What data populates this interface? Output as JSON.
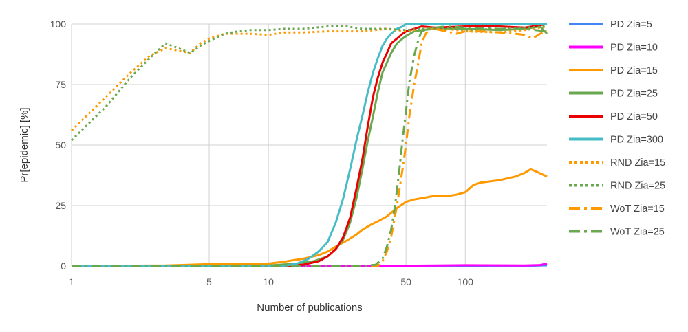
{
  "chart_data": {
    "type": "line",
    "xlabel": "Number of publications",
    "ylabel": "Pr[epidemic] [%]",
    "x_scale": "log",
    "xlim": [
      1,
      260
    ],
    "ylim": [
      0,
      100
    ],
    "x_ticks": [
      1,
      5,
      10,
      50,
      100
    ],
    "y_ticks": [
      0,
      25,
      50,
      75,
      100
    ],
    "grid": true,
    "legend_position": "right",
    "series": [
      {
        "name": "PD Zia=5",
        "color": "#4285f4",
        "dash": "solid",
        "points": [
          [
            1,
            0
          ],
          [
            10,
            0
          ],
          [
            50,
            0
          ],
          [
            100,
            0
          ],
          [
            200,
            0
          ],
          [
            260,
            0.3
          ]
        ]
      },
      {
        "name": "PD Zia=10",
        "color": "#ff00ff",
        "dash": "solid",
        "points": [
          [
            1,
            0
          ],
          [
            20,
            0
          ],
          [
            50,
            0.1
          ],
          [
            100,
            0.3
          ],
          [
            200,
            0.2
          ],
          [
            240,
            0.4
          ],
          [
            260,
            1
          ]
        ]
      },
      {
        "name": "PD Zia=15",
        "color": "#ff9900",
        "dash": "solid",
        "points": [
          [
            1,
            0
          ],
          [
            3,
            0.2
          ],
          [
            5,
            0.8
          ],
          [
            10,
            1
          ],
          [
            12,
            1.8
          ],
          [
            15,
            3
          ],
          [
            18,
            4.5
          ],
          [
            20,
            6
          ],
          [
            22,
            8
          ],
          [
            25,
            10.5
          ],
          [
            28,
            13
          ],
          [
            30,
            15
          ],
          [
            33,
            17
          ],
          [
            36,
            18.5
          ],
          [
            40,
            20.5
          ],
          [
            45,
            24
          ],
          [
            50,
            26.5
          ],
          [
            55,
            27.5
          ],
          [
            60,
            28
          ],
          [
            70,
            29
          ],
          [
            80,
            28.8
          ],
          [
            90,
            29.5
          ],
          [
            100,
            30.5
          ],
          [
            110,
            33.5
          ],
          [
            120,
            34.5
          ],
          [
            150,
            35.5
          ],
          [
            180,
            37
          ],
          [
            200,
            38.5
          ],
          [
            215,
            40
          ],
          [
            230,
            39
          ],
          [
            260,
            37
          ]
        ]
      },
      {
        "name": "PD Zia=25",
        "color": "#6aa84f",
        "dash": "solid",
        "points": [
          [
            1,
            0
          ],
          [
            10,
            0.2
          ],
          [
            14,
            1
          ],
          [
            17,
            2
          ],
          [
            20,
            4
          ],
          [
            22,
            7
          ],
          [
            24,
            11
          ],
          [
            26,
            18
          ],
          [
            28,
            28
          ],
          [
            30,
            40
          ],
          [
            32,
            52
          ],
          [
            34,
            62
          ],
          [
            36,
            72
          ],
          [
            38,
            80
          ],
          [
            40,
            84
          ],
          [
            42,
            88
          ],
          [
            45,
            92
          ],
          [
            48,
            94
          ],
          [
            50,
            95
          ],
          [
            55,
            97
          ],
          [
            60,
            97.5
          ],
          [
            70,
            98
          ],
          [
            100,
            98
          ],
          [
            150,
            97.5
          ],
          [
            200,
            98
          ],
          [
            240,
            99
          ],
          [
            260,
            96
          ]
        ]
      },
      {
        "name": "PD Zia=50",
        "color": "#ea0000",
        "dash": "solid",
        "points": [
          [
            1,
            0
          ],
          [
            12,
            0
          ],
          [
            15,
            0.5
          ],
          [
            18,
            2
          ],
          [
            20,
            4
          ],
          [
            22,
            7
          ],
          [
            24,
            12
          ],
          [
            26,
            20
          ],
          [
            28,
            32
          ],
          [
            30,
            44
          ],
          [
            32,
            58
          ],
          [
            34,
            70
          ],
          [
            36,
            78
          ],
          [
            38,
            84
          ],
          [
            40,
            88
          ],
          [
            42,
            92
          ],
          [
            45,
            94
          ],
          [
            48,
            96
          ],
          [
            50,
            97
          ],
          [
            55,
            98
          ],
          [
            60,
            99
          ],
          [
            70,
            98.5
          ],
          [
            100,
            99
          ],
          [
            150,
            99
          ],
          [
            200,
            98.5
          ],
          [
            260,
            100
          ]
        ]
      },
      {
        "name": "PD Zia=300",
        "color": "#46bdc6",
        "dash": "solid",
        "points": [
          [
            1,
            0
          ],
          [
            12,
            0
          ],
          [
            14,
            1
          ],
          [
            16,
            3
          ],
          [
            18,
            6
          ],
          [
            20,
            10
          ],
          [
            22,
            18
          ],
          [
            24,
            28
          ],
          [
            26,
            40
          ],
          [
            28,
            52
          ],
          [
            30,
            62
          ],
          [
            32,
            72
          ],
          [
            34,
            80
          ],
          [
            36,
            86
          ],
          [
            38,
            91
          ],
          [
            40,
            94
          ],
          [
            42,
            96
          ],
          [
            45,
            98
          ],
          [
            48,
            99
          ],
          [
            50,
            100
          ],
          [
            60,
            100
          ],
          [
            100,
            100
          ],
          [
            260,
            100
          ]
        ]
      },
      {
        "name": "RND Zia=15",
        "color": "#ff9900",
        "dash": "dotted",
        "points": [
          [
            1,
            56
          ],
          [
            1.5,
            70
          ],
          [
            2,
            80
          ],
          [
            2.5,
            87
          ],
          [
            3,
            90
          ],
          [
            3.5,
            89
          ],
          [
            4,
            88
          ],
          [
            4.5,
            92
          ],
          [
            5,
            94
          ],
          [
            6,
            96
          ],
          [
            7,
            96
          ],
          [
            8,
            96
          ],
          [
            10,
            95.5
          ],
          [
            12,
            96.5
          ],
          [
            15,
            96.5
          ],
          [
            20,
            97
          ],
          [
            25,
            97
          ],
          [
            30,
            97
          ],
          [
            40,
            98
          ],
          [
            50,
            97
          ],
          [
            60,
            98
          ],
          [
            80,
            98
          ],
          [
            100,
            97
          ],
          [
            150,
            96.5
          ],
          [
            200,
            97.5
          ],
          [
            260,
            99
          ]
        ]
      },
      {
        "name": "RND Zia=25",
        "color": "#6aa84f",
        "dash": "dotted",
        "points": [
          [
            1,
            52
          ],
          [
            1.5,
            66
          ],
          [
            2,
            78
          ],
          [
            2.5,
            86
          ],
          [
            3,
            92
          ],
          [
            3.5,
            90
          ],
          [
            4,
            88
          ],
          [
            4.5,
            91
          ],
          [
            5,
            93
          ],
          [
            6,
            96
          ],
          [
            7,
            97
          ],
          [
            8,
            97.5
          ],
          [
            10,
            97.5
          ],
          [
            12,
            98
          ],
          [
            15,
            98
          ],
          [
            20,
            99
          ],
          [
            25,
            99
          ],
          [
            30,
            98
          ],
          [
            40,
            98
          ],
          [
            50,
            97.5
          ],
          [
            60,
            98
          ],
          [
            80,
            98.5
          ],
          [
            100,
            97.5
          ],
          [
            150,
            98
          ],
          [
            200,
            98.5
          ],
          [
            260,
            99
          ]
        ]
      },
      {
        "name": "WoT Zia=15",
        "color": "#ff9900",
        "dash": "dashdot",
        "points": [
          [
            1,
            0
          ],
          [
            36,
            0
          ],
          [
            38,
            2
          ],
          [
            40,
            6
          ],
          [
            42,
            12
          ],
          [
            45,
            25
          ],
          [
            48,
            40
          ],
          [
            50,
            50
          ],
          [
            52,
            62
          ],
          [
            55,
            75
          ],
          [
            58,
            85
          ],
          [
            60,
            92
          ],
          [
            63,
            96
          ],
          [
            66,
            98
          ],
          [
            70,
            98
          ],
          [
            80,
            97
          ],
          [
            90,
            96
          ],
          [
            100,
            97
          ],
          [
            120,
            97
          ],
          [
            150,
            96.5
          ],
          [
            180,
            96
          ],
          [
            200,
            95.5
          ],
          [
            220,
            94
          ],
          [
            240,
            96
          ],
          [
            260,
            97
          ]
        ]
      },
      {
        "name": "WoT Zia=25",
        "color": "#6aa84f",
        "dash": "dashdot",
        "points": [
          [
            1,
            0
          ],
          [
            30,
            0
          ],
          [
            35,
            0.5
          ],
          [
            38,
            3
          ],
          [
            40,
            8
          ],
          [
            42,
            15
          ],
          [
            44,
            25
          ],
          [
            46,
            38
          ],
          [
            48,
            52
          ],
          [
            50,
            64
          ],
          [
            52,
            76
          ],
          [
            55,
            87
          ],
          [
            58,
            94
          ],
          [
            60,
            97
          ],
          [
            65,
            98
          ],
          [
            70,
            98.5
          ],
          [
            80,
            99
          ],
          [
            100,
            98.5
          ],
          [
            150,
            98
          ],
          [
            200,
            98
          ],
          [
            260,
            97
          ]
        ]
      }
    ]
  }
}
